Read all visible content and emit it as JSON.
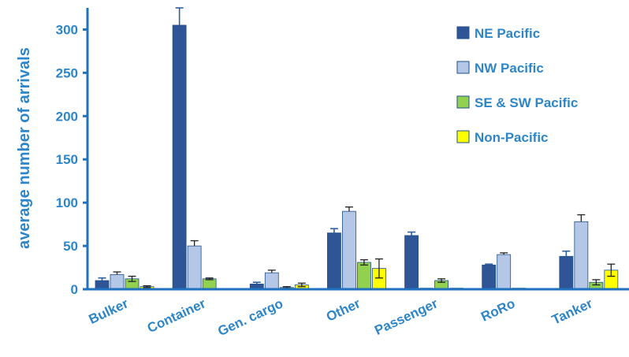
{
  "chart_data": {
    "type": "bar",
    "title": "",
    "xlabel": "",
    "ylabel": "average number of arrivals",
    "ylim": [
      0,
      325
    ],
    "yticks": [
      0,
      50,
      100,
      150,
      200,
      250,
      300
    ],
    "grid": false,
    "legend_position": "top-right",
    "categories": [
      "Bulker",
      "Container",
      "Gen. cargo",
      "Other",
      "Passenger",
      "RoRo",
      "Tanker"
    ],
    "series": [
      {
        "name": "NE Pacific",
        "color": "#2f5597",
        "values": [
          10,
          305,
          6,
          65,
          62,
          28,
          38
        ],
        "errors": [
          3,
          20,
          2,
          5,
          4,
          1,
          6
        ]
      },
      {
        "name": "NW Pacific",
        "color": "#b4c7e7",
        "values": [
          17,
          50,
          19,
          90,
          0,
          40,
          78
        ],
        "errors": [
          3,
          6,
          3,
          5,
          0,
          2,
          8
        ]
      },
      {
        "name": "SE & SW Pacific",
        "color": "#92d050",
        "values": [
          12,
          12,
          2,
          31,
          10,
          0,
          8
        ],
        "errors": [
          3,
          1,
          1,
          3,
          2,
          0,
          3
        ]
      },
      {
        "name": "Non-Pacific",
        "color": "#ffff00",
        "values": [
          3,
          1,
          5,
          24,
          0,
          1,
          22
        ],
        "errors": [
          1,
          0,
          2,
          11,
          0,
          0,
          7
        ]
      }
    ]
  }
}
